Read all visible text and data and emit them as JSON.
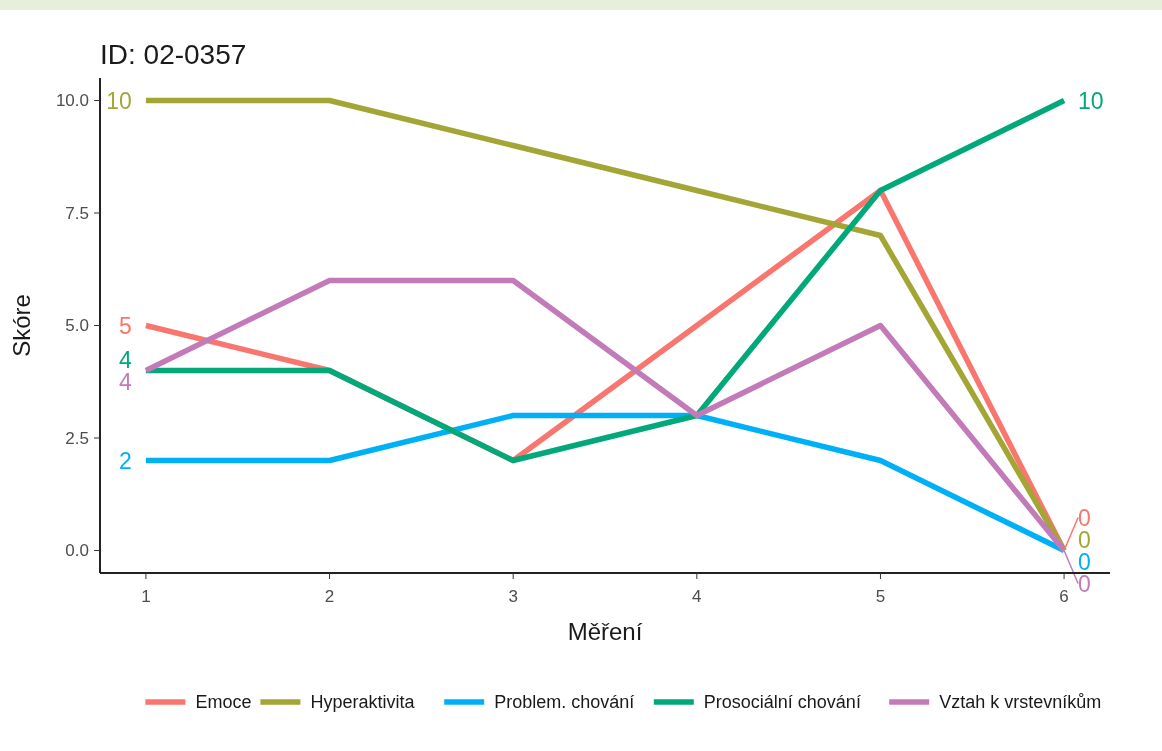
{
  "chart_data": {
    "type": "line",
    "title": "ID: 02-0357",
    "xlabel": "Měření",
    "ylabel": "Skóre",
    "x": [
      1,
      2,
      3,
      4,
      5,
      6
    ],
    "xlim": [
      0.75,
      6.25
    ],
    "xticks": [
      1,
      2,
      3,
      4,
      5,
      6
    ],
    "ylim": [
      -0.5,
      10.5
    ],
    "yticks": [
      {
        "value": 0,
        "label": "0.0"
      },
      {
        "value": 2.5,
        "label": "2.5"
      },
      {
        "value": 5,
        "label": "5.0"
      },
      {
        "value": 7.5,
        "label": "7.5"
      },
      {
        "value": 10,
        "label": "10.0"
      }
    ],
    "grid": false,
    "legend": "bottom",
    "line_style": "solid",
    "marker": "none",
    "series": [
      {
        "name": "Emoce",
        "color": "#f8766d",
        "values": [
          5,
          4,
          2,
          5,
          8,
          0
        ],
        "value_labels": [
          "5",
          null,
          null,
          null,
          null,
          "0"
        ]
      },
      {
        "name": "Hyperaktivita",
        "color": "#a3a534",
        "values": [
          10,
          10,
          9,
          8,
          7,
          0
        ],
        "value_labels": [
          "10",
          null,
          null,
          null,
          null,
          "0"
        ]
      },
      {
        "name": "Problem. chování",
        "color": "#00b0f6",
        "values": [
          2,
          2,
          3,
          3,
          2,
          0
        ],
        "value_labels": [
          "2",
          null,
          null,
          null,
          null,
          "0"
        ]
      },
      {
        "name": "Prosociální chování",
        "color": "#00a87a",
        "values": [
          4,
          4,
          2,
          3,
          8,
          10
        ],
        "value_labels": [
          "4",
          null,
          null,
          null,
          null,
          "10"
        ]
      },
      {
        "name": "Vztah k vrstevníkům",
        "color": "#c27bb8",
        "values": [
          4,
          6,
          6,
          3,
          5,
          0
        ],
        "value_labels": [
          "4",
          null,
          null,
          null,
          null,
          "0"
        ]
      }
    ]
  }
}
